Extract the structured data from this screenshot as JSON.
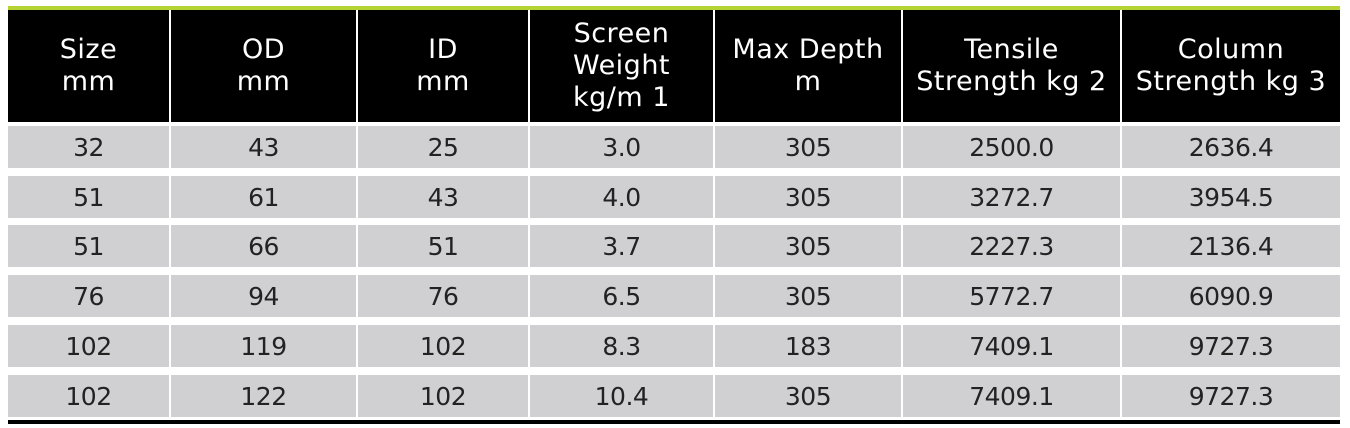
{
  "table": {
    "headers": [
      "Size\nmm",
      "OD\nmm",
      "ID\nmm",
      "Screen\nWeight\nkg/m  1",
      "Max Depth\nm",
      "Tensile\nStrength kg  2",
      "Column\nStrength kg  3"
    ],
    "rows": [
      [
        "32",
        "43",
        "25",
        "3.0",
        "305",
        "2500.0",
        "2636.4"
      ],
      [
        "51",
        "61",
        "43",
        "4.0",
        "305",
        "3272.7",
        "3954.5"
      ],
      [
        "51",
        "66",
        "51",
        "3.7",
        "305",
        "2227.3",
        "2136.4"
      ],
      [
        "76",
        "94",
        "76",
        "6.5",
        "305",
        "5772.7",
        "6090.9"
      ],
      [
        "102",
        "119",
        "102",
        "8.3",
        "183",
        "7409.1",
        "9727.3"
      ],
      [
        "102",
        "122",
        "102",
        "10.4",
        "305",
        "7409.1",
        "9727.3"
      ]
    ]
  },
  "colors": {
    "accent_rule": "#b5d334",
    "header_bg": "#000000",
    "header_text": "#ffffff",
    "row_bg": "#d0d0d2",
    "row_text": "#222222"
  }
}
